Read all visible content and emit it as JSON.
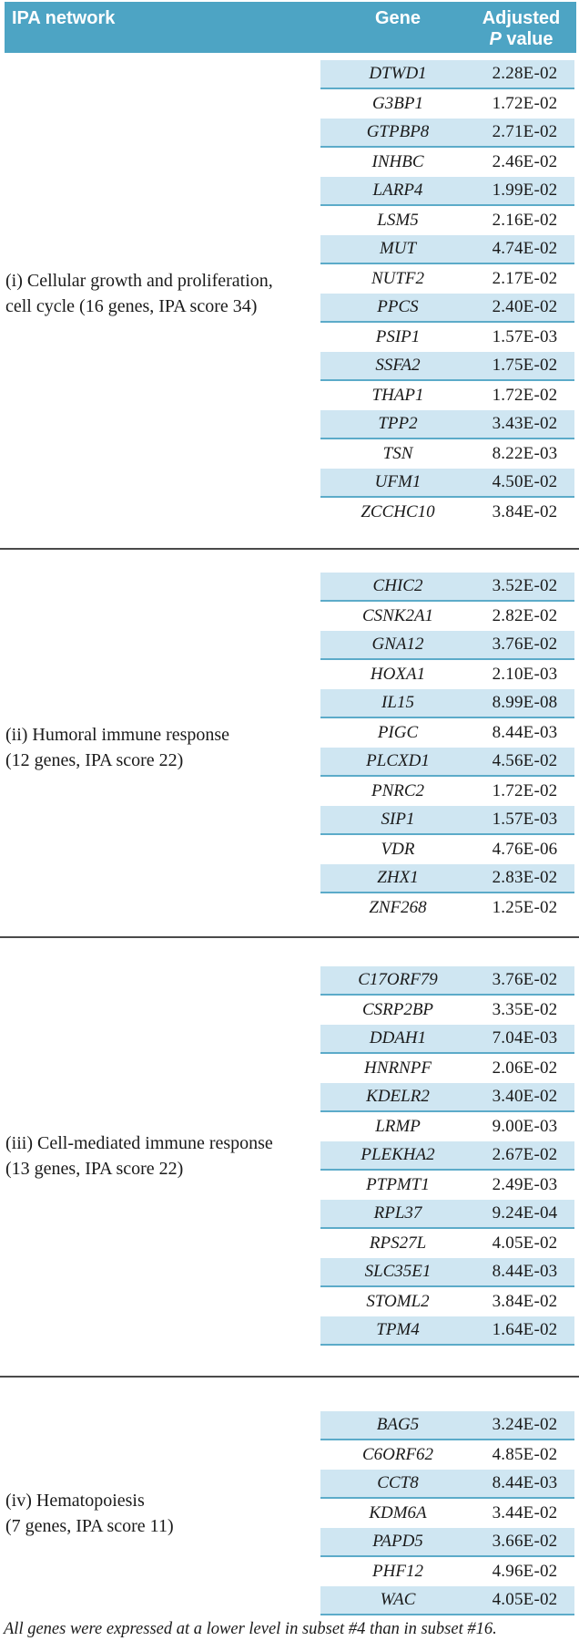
{
  "header": {
    "ipa_network": "IPA network",
    "gene": "Gene",
    "adjusted": "Adjusted",
    "p_italic": "P",
    "p_rest": " value"
  },
  "colors": {
    "header_bg": "#4da4c4",
    "row_shade": "#cfe6f2",
    "row_line": "#5cabc9",
    "divider": "#4a4a4a"
  },
  "sections": [
    {
      "label_line1": "(i) Cellular growth and proliferation,",
      "label_line2": "cell cycle (16 genes, IPA score 34)",
      "rows": [
        {
          "gene": "DTWD1",
          "p": "2.28E-02"
        },
        {
          "gene": "G3BP1",
          "p": "1.72E-02"
        },
        {
          "gene": "GTPBP8",
          "p": "2.71E-02"
        },
        {
          "gene": "INHBC",
          "p": "2.46E-02"
        },
        {
          "gene": "LARP4",
          "p": "1.99E-02"
        },
        {
          "gene": "LSM5",
          "p": "2.16E-02"
        },
        {
          "gene": "MUT",
          "p": "4.74E-02"
        },
        {
          "gene": "NUTF2",
          "p": "2.17E-02"
        },
        {
          "gene": "PPCS",
          "p": "2.40E-02"
        },
        {
          "gene": "PSIP1",
          "p": "1.57E-03"
        },
        {
          "gene": "SSFA2",
          "p": "1.75E-02"
        },
        {
          "gene": "THAP1",
          "p": "1.72E-02"
        },
        {
          "gene": "TPP2",
          "p": "3.43E-02"
        },
        {
          "gene": "TSN",
          "p": "8.22E-03"
        },
        {
          "gene": "UFM1",
          "p": "4.50E-02"
        },
        {
          "gene": "ZCCHC10",
          "p": "3.84E-02"
        }
      ]
    },
    {
      "label_line1": "(ii) Humoral immune response",
      "label_line2": "(12 genes, IPA score 22)",
      "rows": [
        {
          "gene": "CHIC2",
          "p": "3.52E-02"
        },
        {
          "gene": "CSNK2A1",
          "p": "2.82E-02"
        },
        {
          "gene": "GNA12",
          "p": "3.76E-02"
        },
        {
          "gene": "HOXA1",
          "p": "2.10E-03"
        },
        {
          "gene": "IL15",
          "p": "8.99E-08"
        },
        {
          "gene": "PIGC",
          "p": "8.44E-03"
        },
        {
          "gene": "PLCXD1",
          "p": "4.56E-02"
        },
        {
          "gene": "PNRC2",
          "p": "1.72E-02"
        },
        {
          "gene": "SIP1",
          "p": "1.57E-03"
        },
        {
          "gene": "VDR",
          "p": "4.76E-06"
        },
        {
          "gene": "ZHX1",
          "p": "2.83E-02"
        },
        {
          "gene": "ZNF268",
          "p": "1.25E-02"
        }
      ]
    },
    {
      "label_line1": "(iii) Cell-mediated immune response",
      "label_line2": "(13 genes, IPA score 22)",
      "rows": [
        {
          "gene": "C17ORF79",
          "p": "3.76E-02"
        },
        {
          "gene": "CSRP2BP",
          "p": "3.35E-02"
        },
        {
          "gene": "DDAH1",
          "p": "7.04E-03"
        },
        {
          "gene": "HNRNPF",
          "p": "2.06E-02"
        },
        {
          "gene": "KDELR2",
          "p": "3.40E-02"
        },
        {
          "gene": "LRMP",
          "p": "9.00E-03"
        },
        {
          "gene": "PLEKHA2",
          "p": "2.67E-02"
        },
        {
          "gene": "PTPMT1",
          "p": "2.49E-03"
        },
        {
          "gene": "RPL37",
          "p": "9.24E-04"
        },
        {
          "gene": "RPS27L",
          "p": "4.05E-02"
        },
        {
          "gene": "SLC35E1",
          "p": "8.44E-03"
        },
        {
          "gene": "STOML2",
          "p": "3.84E-02"
        },
        {
          "gene": "TPM4",
          "p": "1.64E-02"
        }
      ]
    },
    {
      "label_line1": "(iv) Hematopoiesis",
      "label_line2": "(7 genes, IPA score 11)",
      "rows": [
        {
          "gene": "BAG5",
          "p": "3.24E-02"
        },
        {
          "gene": "C6ORF62",
          "p": "4.85E-02"
        },
        {
          "gene": "CCT8",
          "p": "8.44E-03"
        },
        {
          "gene": "KDM6A",
          "p": "3.44E-02"
        },
        {
          "gene": "PAPD5",
          "p": "3.66E-02"
        },
        {
          "gene": "PHF12",
          "p": "4.96E-02"
        },
        {
          "gene": "WAC",
          "p": "4.05E-02"
        }
      ]
    }
  ],
  "footer": {
    "note": "All genes were expressed at a lower level in subset #4 than in subset #16."
  }
}
